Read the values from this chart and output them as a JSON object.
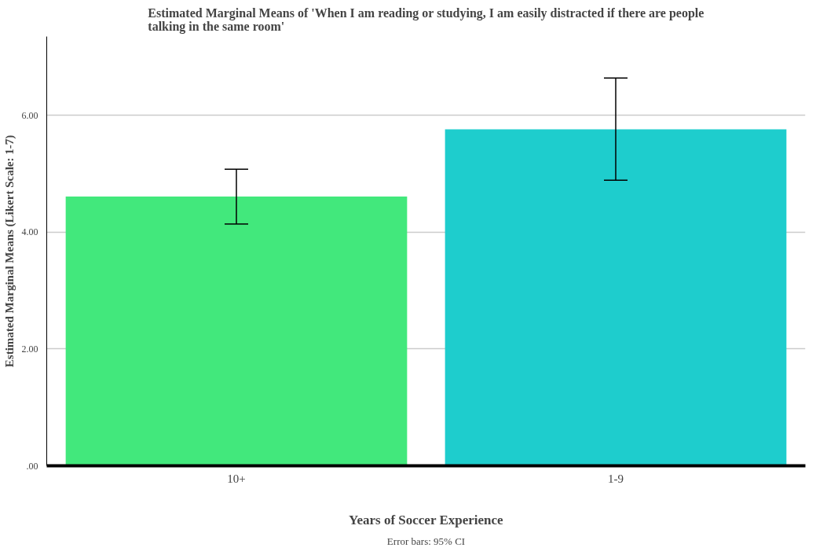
{
  "chart_data": {
    "type": "bar",
    "title": "Estimated Marginal Means of 'When I am reading or studying, I am easily distracted if there are people talking in the same room'",
    "xlabel": "Years of Soccer Experience",
    "ylabel": "Estimated Marginal Means (Likert Scale: 1-7)",
    "categories": [
      "10+",
      "1-9"
    ],
    "values": [
      4.61,
      5.76
    ],
    "colors": [
      "#42e87c",
      "#1ecdcd"
    ],
    "errors": [
      [
        4.14,
        5.08
      ],
      [
        4.89,
        6.64
      ]
    ],
    "ylim": [
      0,
      7.35
    ],
    "yticks": [
      {
        "value": 0,
        "label": ".00"
      },
      {
        "value": 2,
        "label": "2.00"
      },
      {
        "value": 4,
        "label": "4.00"
      },
      {
        "value": 6,
        "label": "6.00"
      }
    ],
    "grid": "y",
    "annotations": [
      "Error bars: 95% CI"
    ]
  }
}
